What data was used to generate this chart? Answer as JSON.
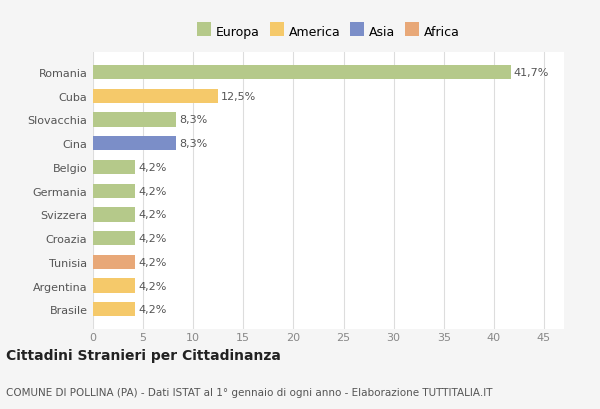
{
  "categories": [
    "Romania",
    "Cuba",
    "Slovacchia",
    "Cina",
    "Belgio",
    "Germania",
    "Svizzera",
    "Croazia",
    "Tunisia",
    "Argentina",
    "Brasile"
  ],
  "values": [
    41.7,
    12.5,
    8.3,
    8.3,
    4.2,
    4.2,
    4.2,
    4.2,
    4.2,
    4.2,
    4.2
  ],
  "labels": [
    "41,7%",
    "12,5%",
    "8,3%",
    "8,3%",
    "4,2%",
    "4,2%",
    "4,2%",
    "4,2%",
    "4,2%",
    "4,2%",
    "4,2%"
  ],
  "colors": [
    "#b5c98a",
    "#f5c96a",
    "#b5c98a",
    "#7b8ec8",
    "#b5c98a",
    "#b5c98a",
    "#b5c98a",
    "#b5c98a",
    "#e8a878",
    "#f5c96a",
    "#f5c96a"
  ],
  "legend_labels": [
    "Europa",
    "America",
    "Asia",
    "Africa"
  ],
  "legend_colors": [
    "#b5c98a",
    "#f5c96a",
    "#7b8ec8",
    "#e8a878"
  ],
  "xlim": [
    0,
    47
  ],
  "xticks": [
    0,
    5,
    10,
    15,
    20,
    25,
    30,
    35,
    40,
    45
  ],
  "title": "Cittadini Stranieri per Cittadinanza",
  "subtitle": "COMUNE DI POLLINA (PA) - Dati ISTAT al 1° gennaio di ogni anno - Elaborazione TUTTITALIA.IT",
  "background_color": "#f5f5f5",
  "plot_bg_color": "#ffffff",
  "grid_color": "#dddddd",
  "bar_height": 0.6,
  "title_fontsize": 10,
  "subtitle_fontsize": 7.5,
  "label_fontsize": 8,
  "tick_fontsize": 8,
  "legend_fontsize": 9
}
